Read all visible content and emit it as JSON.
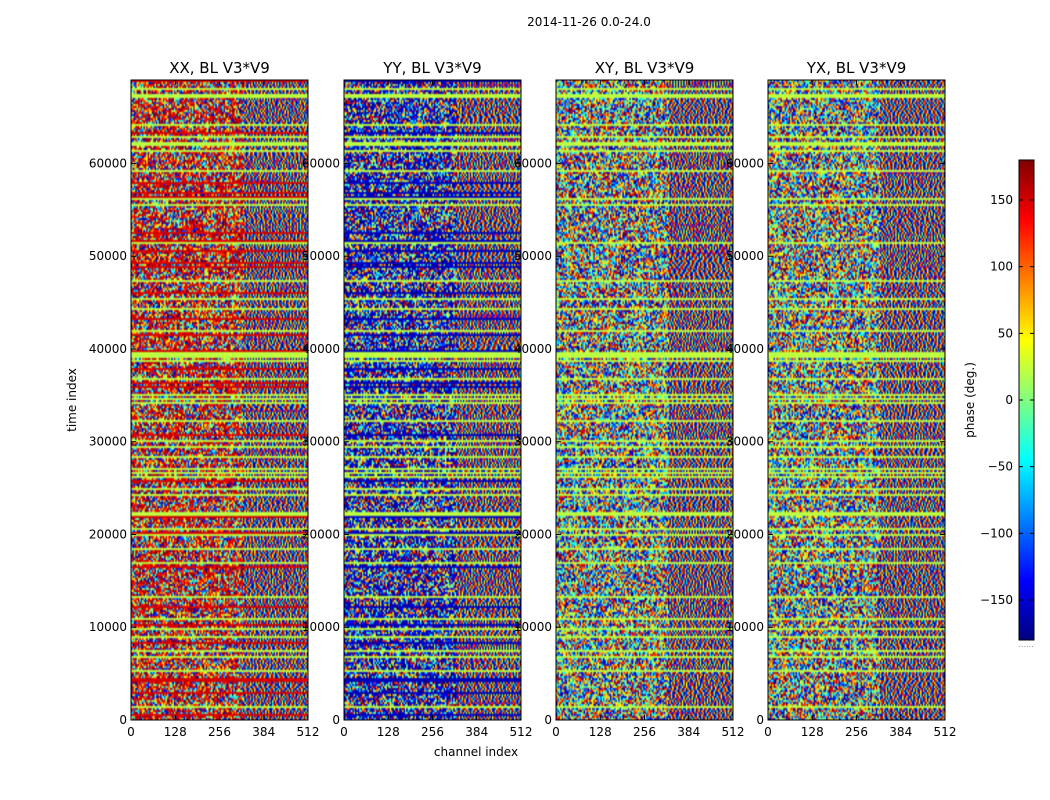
{
  "chart_data": {
    "type": "heatmap",
    "title": "2014-11-26 0.0-24.0",
    "xlabel": "channel index",
    "ylabel": "time index",
    "xlim": [
      0,
      512
    ],
    "ylim": [
      0,
      69000
    ],
    "xticks": [
      0,
      128,
      256,
      384,
      512
    ],
    "yticks": [
      0,
      10000,
      20000,
      30000,
      40000,
      50000,
      60000
    ],
    "colorbar": {
      "label": "phase (deg.)",
      "range": [
        -180,
        180
      ],
      "ticks": [
        -150,
        -100,
        -50,
        0,
        50,
        100,
        150
      ],
      "tick_labels": [
        "−150",
        "−100",
        "−50",
        "0",
        "50",
        "100",
        "150"
      ],
      "colormap": "jet",
      "footer": "......"
    },
    "panels": [
      {
        "title": "XX, BL V3*V9",
        "bias": 150,
        "seed": 11
      },
      {
        "title": "YY, BL V3*V9",
        "bias": -160,
        "seed": 23
      },
      {
        "title": "XY, BL V3*V9",
        "bias": 0,
        "seed": 37
      },
      {
        "title": "YX, BL V3*V9",
        "bias": 0,
        "seed": 53
      }
    ],
    "notes": "Phase vs channel and time; noisy below ~channel 320, fringe stripes above; horizontal flagged bands."
  }
}
